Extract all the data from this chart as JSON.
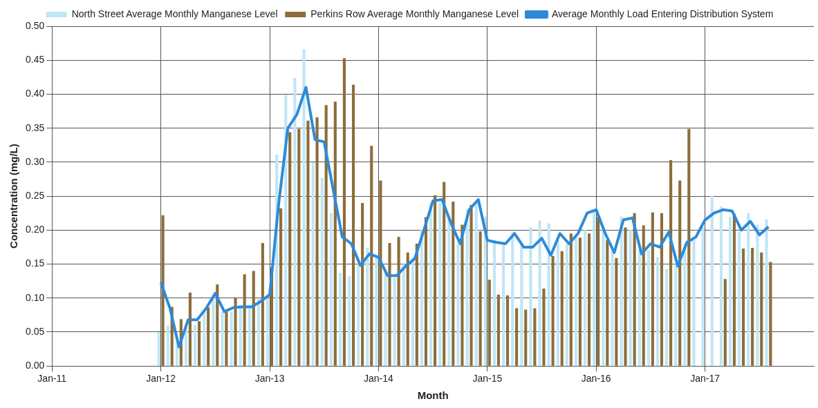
{
  "chart_data": {
    "type": "bar",
    "xlabel": "Month",
    "ylabel": "Concentration (mg/L)",
    "x": [
      "2012-01",
      "2012-02",
      "2012-03",
      "2012-04",
      "2012-05",
      "2012-06",
      "2012-07",
      "2012-08",
      "2012-09",
      "2012-10",
      "2012-11",
      "2012-12",
      "2013-01",
      "2013-02",
      "2013-03",
      "2013-04",
      "2013-05",
      "2013-06",
      "2013-07",
      "2013-08",
      "2013-09",
      "2013-10",
      "2013-11",
      "2013-12",
      "2014-01",
      "2014-02",
      "2014-03",
      "2014-04",
      "2014-05",
      "2014-06",
      "2014-07",
      "2014-08",
      "2014-09",
      "2014-10",
      "2014-11",
      "2014-12",
      "2015-01",
      "2015-02",
      "2015-03",
      "2015-04",
      "2015-05",
      "2015-06",
      "2015-07",
      "2015-08",
      "2015-09",
      "2015-10",
      "2015-11",
      "2015-12",
      "2016-01",
      "2016-02",
      "2016-03",
      "2016-04",
      "2016-05",
      "2016-06",
      "2016-07",
      "2016-08",
      "2016-09",
      "2016-10",
      "2016-11",
      "2016-12",
      "2017-01",
      "2017-02",
      "2017-03",
      "2017-04",
      "2017-05",
      "2017-06",
      "2017-07",
      "2017-08"
    ],
    "series": [
      {
        "name": "North Street Average Monthly Manganese Level",
        "color": "#bfe6f5",
        "values": [
          0.05,
          0.06,
          0.035,
          0.06,
          0.06,
          0.08,
          0.1,
          0.08,
          0.08,
          0.09,
          0.09,
          0.1,
          0.1,
          0.311,
          0.399,
          0.424,
          0.466,
          0.3,
          0.277,
          0.225,
          0.137,
          0.132,
          0.15,
          0.174,
          0.16,
          0.14,
          0.13,
          0.15,
          0.16,
          0.2,
          0.24,
          0.24,
          0.22,
          0.18,
          0.23,
          0.24,
          0.22,
          0.183,
          0.178,
          0.197,
          0.178,
          0.204,
          0.214,
          0.21,
          0.185,
          0.18,
          0.19,
          0.2,
          0.23,
          0.2,
          0.17,
          0.22,
          0.2,
          0.17,
          0.17,
          0.16,
          0.143,
          0.15,
          0.18,
          0.185,
          0.204,
          0.25,
          0.235,
          0.22,
          0.197,
          0.225,
          0.208,
          0.216
        ]
      },
      {
        "name": "Perkins Row Average Monthly Manganese Level",
        "color": "#8c6d3a",
        "values": [
          0.222,
          0.087,
          0.069,
          0.108,
          0.066,
          0.086,
          0.12,
          0.08,
          0.101,
          0.135,
          0.14,
          0.181,
          0.145,
          0.232,
          0.344,
          0.349,
          0.361,
          0.366,
          0.384,
          0.389,
          0.453,
          0.414,
          0.24,
          0.324,
          0.273,
          0.181,
          0.19,
          0.167,
          0.18,
          0.219,
          0.251,
          0.271,
          0.242,
          0.208,
          0.237,
          0.198,
          0.127,
          0.105,
          0.104,
          0.085,
          0.083,
          0.085,
          0.114,
          0.162,
          0.169,
          0.195,
          0.189,
          0.195,
          0.219,
          0.185,
          0.159,
          0.204,
          0.225,
          0.207,
          0.226,
          0.225,
          0.303,
          0.273,
          0.349,
          null,
          null,
          null,
          0.128,
          0.224,
          0.173,
          0.174,
          0.167,
          0.153
        ]
      },
      {
        "name": "Average Monthly Load Entering Distribution System",
        "type": "line",
        "color": "#2e8ad8",
        "values": [
          0.123,
          0.085,
          0.028,
          0.068,
          0.068,
          0.085,
          0.107,
          0.08,
          0.086,
          0.087,
          0.087,
          0.095,
          0.105,
          0.24,
          0.35,
          0.37,
          0.41,
          0.333,
          0.33,
          0.26,
          0.19,
          0.18,
          0.148,
          0.165,
          0.16,
          0.133,
          0.133,
          0.147,
          0.158,
          0.2,
          0.243,
          0.245,
          0.21,
          0.18,
          0.23,
          0.245,
          0.185,
          0.182,
          0.18,
          0.195,
          0.175,
          0.175,
          0.188,
          0.163,
          0.195,
          0.18,
          0.195,
          0.225,
          0.23,
          0.195,
          0.167,
          0.215,
          0.218,
          0.165,
          0.18,
          0.175,
          0.197,
          0.147,
          0.182,
          0.19,
          0.215,
          0.225,
          0.23,
          0.228,
          0.2,
          0.213,
          0.193,
          0.205
        ]
      }
    ],
    "xlim": [
      "2011-01",
      "2018-01"
    ],
    "xticks": [
      {
        "value": "2011-01",
        "label": "Jan-11"
      },
      {
        "value": "2012-01",
        "label": "Jan-12"
      },
      {
        "value": "2013-01",
        "label": "Jan-13"
      },
      {
        "value": "2014-01",
        "label": "Jan-14"
      },
      {
        "value": "2015-01",
        "label": "Jan-15"
      },
      {
        "value": "2016-01",
        "label": "Jan-16"
      },
      {
        "value": "2017-01",
        "label": "Jan-17"
      }
    ],
    "ylim": [
      0,
      0.5
    ],
    "yticks": [
      {
        "value": 0,
        "label": "0.00"
      },
      {
        "value": 0.05,
        "label": "0.05"
      },
      {
        "value": 0.1,
        "label": "0.10"
      },
      {
        "value": 0.15,
        "label": "0.15"
      },
      {
        "value": 0.2,
        "label": "0.20"
      },
      {
        "value": 0.25,
        "label": "0.25"
      },
      {
        "value": 0.3,
        "label": "0.30"
      },
      {
        "value": 0.35,
        "label": "0.35"
      },
      {
        "value": 0.4,
        "label": "0.40"
      },
      {
        "value": 0.45,
        "label": "0.45"
      },
      {
        "value": 0.5,
        "label": "0.50"
      }
    ],
    "grid": true,
    "legend": "top",
    "marker": "none",
    "line_style": "solid"
  }
}
